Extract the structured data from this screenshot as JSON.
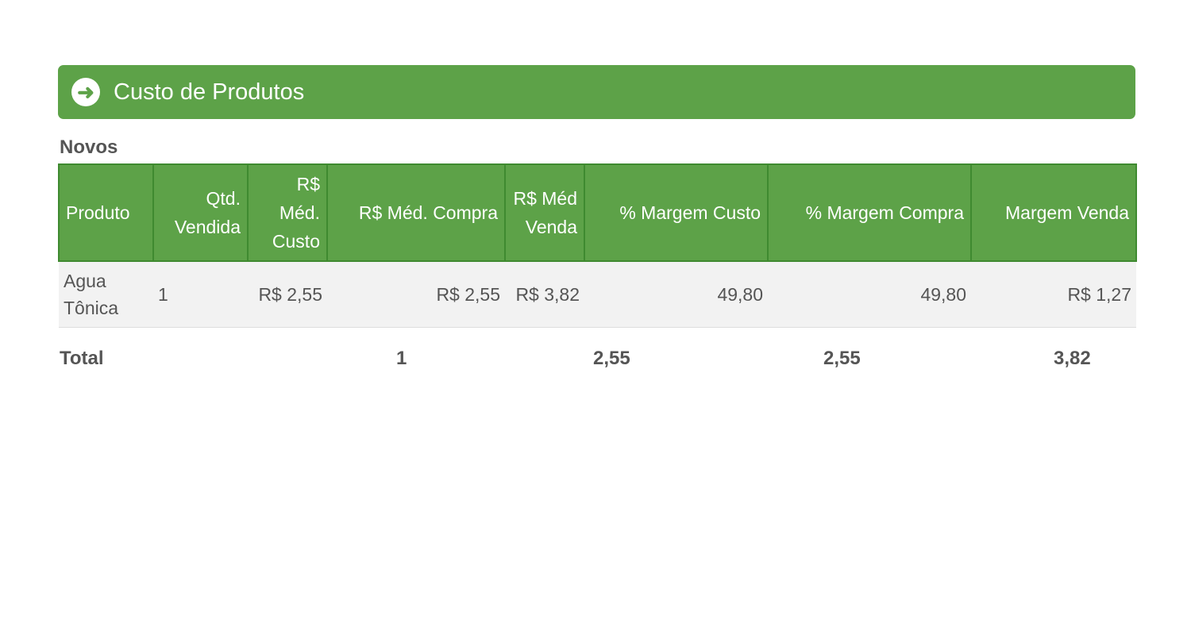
{
  "banner": {
    "icon": "arrow-circle-right-icon",
    "title": "Custo de Produtos"
  },
  "section": "Novos",
  "table": {
    "headers": [
      "Produto",
      "Qtd. Vendida",
      "R$ Méd. Custo",
      "R$ Méd. Compra",
      "R$ Méd Venda",
      "% Margem Custo",
      "% Margem Compra",
      "Margem Venda"
    ],
    "rows": [
      [
        "Agua Tônica",
        "1",
        "R$ 2,55",
        "R$ 2,55",
        "R$ 3,82",
        "49,80",
        "49,80",
        "R$ 1,27"
      ]
    ]
  },
  "total": {
    "label": "Total",
    "qtd": "1",
    "custo": "2,55",
    "compra": "2,55",
    "venda": "3,82"
  },
  "colors": {
    "accent": "#5da248",
    "border": "#3f8a30",
    "row_bg": "#f2f2f2"
  }
}
